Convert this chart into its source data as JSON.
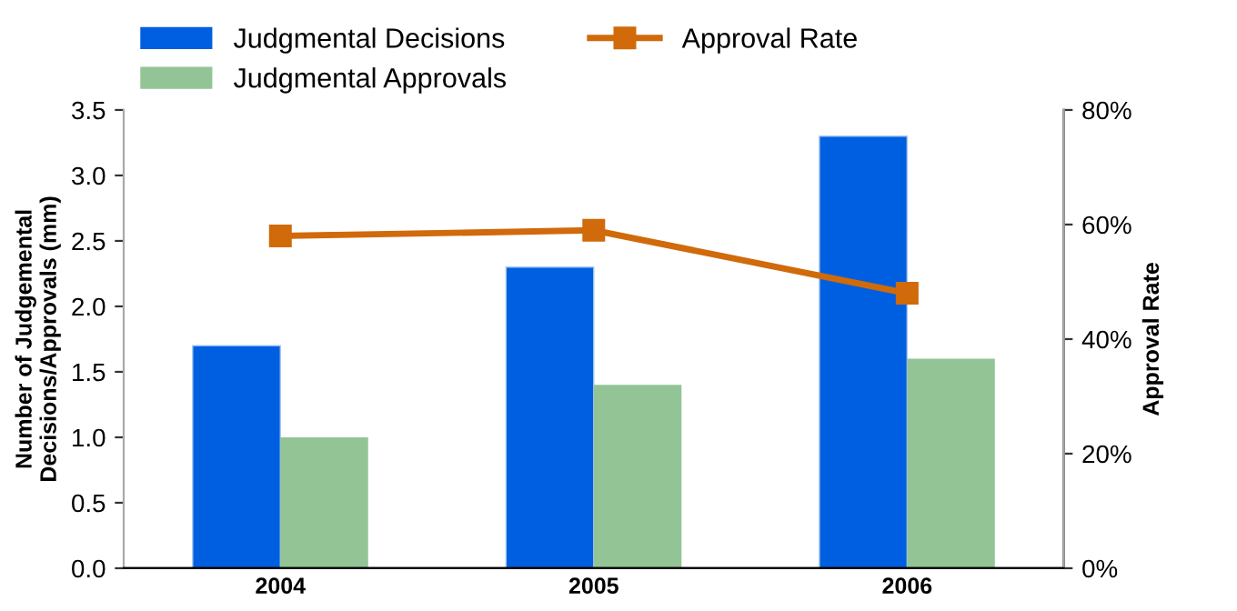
{
  "chart_data": {
    "type": "bar",
    "categories": [
      "2004",
      "2005",
      "2006"
    ],
    "series": [
      {
        "name": "Judgmental Decisions",
        "color": "#005fe0",
        "values": [
          1.7,
          2.3,
          3.3
        ]
      },
      {
        "name": "Judgmental Approvals",
        "color": "#93c496",
        "values": [
          1.0,
          1.4,
          1.6
        ]
      },
      {
        "name": "Approval Rate",
        "color": "#d06a0a",
        "values": [
          58,
          59,
          48
        ],
        "type": "line",
        "axis": "y2",
        "marker": "square"
      }
    ],
    "ylabel": "Number of Judgemental\nDecisions/Approvals (mm)",
    "y2label": "Approval Rate",
    "ylim": [
      0,
      3.5
    ],
    "yticks": [
      {
        "value": 0,
        "label": "0.0"
      },
      {
        "value": 0.5,
        "label": "0.5"
      },
      {
        "value": 1,
        "label": "1.0"
      },
      {
        "value": 1.5,
        "label": "1.5"
      },
      {
        "value": 2,
        "label": "2.0"
      },
      {
        "value": 2.5,
        "label": "2.5"
      },
      {
        "value": 3,
        "label": "3.0"
      },
      {
        "value": 3.5,
        "label": "3.5"
      }
    ],
    "y2lim": [
      0,
      80
    ],
    "y2ticks": [
      {
        "value": 0,
        "label": "0%"
      },
      {
        "value": 20,
        "label": "20%"
      },
      {
        "value": 40,
        "label": "40%"
      },
      {
        "value": 60,
        "label": "60%"
      },
      {
        "value": 80,
        "label": "80%"
      }
    ],
    "grid": false,
    "legend": "top"
  }
}
